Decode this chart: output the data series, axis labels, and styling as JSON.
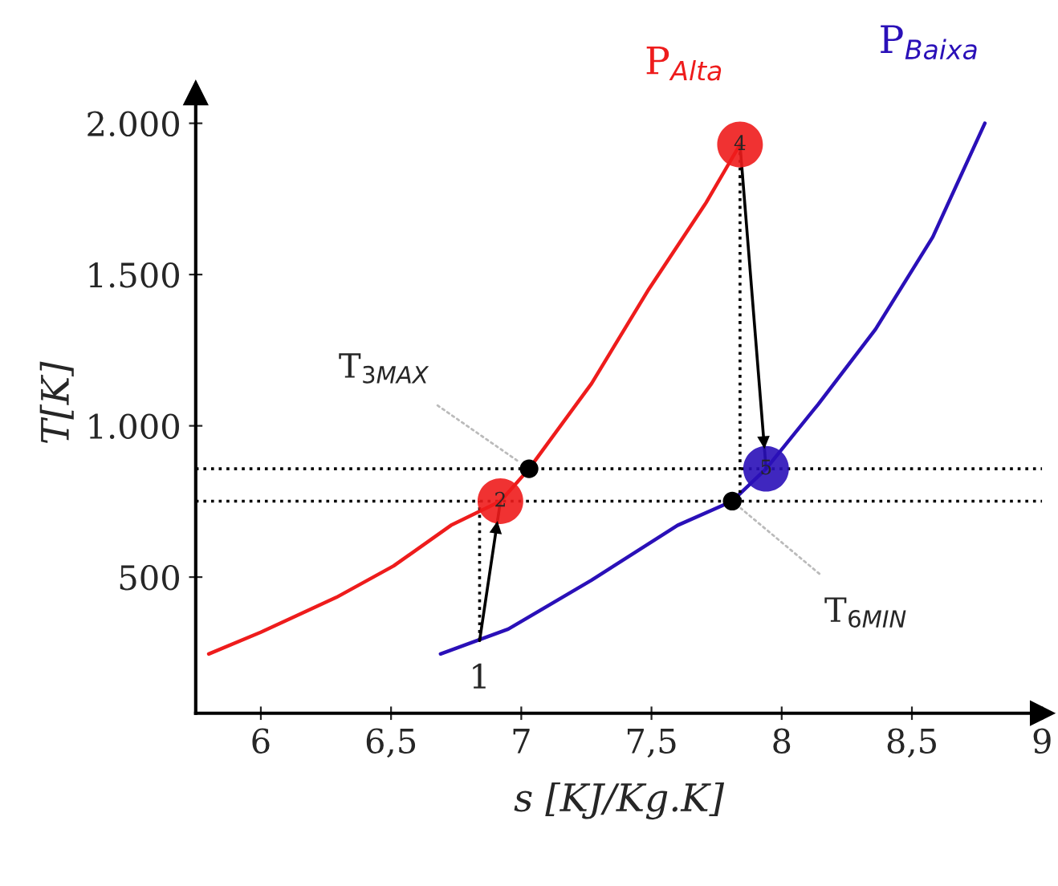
{
  "chart_data": {
    "type": "line",
    "xlabel": "s [KJ/Kg.K]",
    "ylabel": "T[K]",
    "xlim": [
      5.75,
      9
    ],
    "ylim": [
      50,
      2100
    ],
    "xticks": [
      6,
      {
        "value": 6.5,
        "label": "6,5"
      },
      7,
      {
        "value": 7.5,
        "label": "7,5"
      },
      8,
      {
        "value": 8.5,
        "label": "8,5"
      },
      9
    ],
    "yticks": [
      500,
      {
        "value": 1000,
        "label": "1.000"
      },
      {
        "value": 1500,
        "label": "1.500"
      },
      {
        "value": 2000,
        "label": "2.000"
      }
    ],
    "grid": false,
    "legend": false,
    "series": [
      {
        "name": "P$_{Alta}$",
        "color": "#ee1c1c",
        "x": [
          5.8,
          6.0,
          6.29,
          6.51,
          6.73,
          6.92,
          7.03,
          7.27,
          7.49,
          7.71,
          7.84
        ],
        "values": [
          246,
          318,
          433,
          537,
          671,
          751,
          858,
          1140,
          1452,
          1738,
          1930
        ]
      },
      {
        "name": "P$_{Baixa}$",
        "color": "#2a10b8",
        "x": [
          6.69,
          6.95,
          7.27,
          7.6,
          7.81,
          7.94,
          8.14,
          8.36,
          8.58,
          8.78
        ],
        "values": [
          246,
          328,
          490,
          671,
          751,
          858,
          1071,
          1319,
          1624,
          2000
        ]
      },
      {
        "color": "#000000",
        "line_style": "dotted",
        "x": [
          6.84,
          6.84
        ],
        "values": [
          290,
          751
        ]
      },
      {
        "color": "#000000",
        "line_style": "dotted",
        "x": [
          7.84,
          7.84
        ],
        "values": [
          1930,
          751
        ]
      },
      {
        "color": "#000000",
        "line_style": "solid",
        "x": [
          6.84,
          6.92
        ],
        "values": [
          290,
          751
        ]
      },
      {
        "color": "#000000",
        "line_style": "solid",
        "x": [
          7.84,
          7.94
        ],
        "values": [
          1930,
          858
        ]
      },
      {
        "type": "bubble",
        "colors": [
          "#ee1c1c",
          "#ee1c1c",
          "#2a10b8"
        ],
        "x": [
          6.92,
          7.84,
          7.94
        ],
        "values": [
          751,
          1930,
          858
        ],
        "sizes": [
          1,
          1,
          1
        ]
      },
      {
        "type": "scatter",
        "color": "#000000",
        "x": [
          7.03,
          7.81
        ],
        "values": [
          858,
          751
        ]
      }
    ],
    "ref_lines": [
      {
        "axis": "y",
        "value": 858,
        "color": "#000000",
        "line_style": "dotted"
      },
      {
        "axis": "y",
        "value": 751,
        "color": "#000000",
        "line_style": "dotted"
      }
    ],
    "annotations": [
      {
        "text": "1",
        "x": 6.84,
        "y": 290
      },
      {
        "text": "2",
        "x": 6.92,
        "y": 751
      },
      {
        "text": "4",
        "x": 7.84,
        "y": 1930
      },
      {
        "text": "5",
        "x": 7.94,
        "y": 858
      },
      {
        "text": "T$_{3MAX}$",
        "x": 7.03,
        "y": 858
      },
      {
        "text": "T$_{6MIN}$",
        "x": 7.81,
        "y": 751
      }
    ]
  }
}
